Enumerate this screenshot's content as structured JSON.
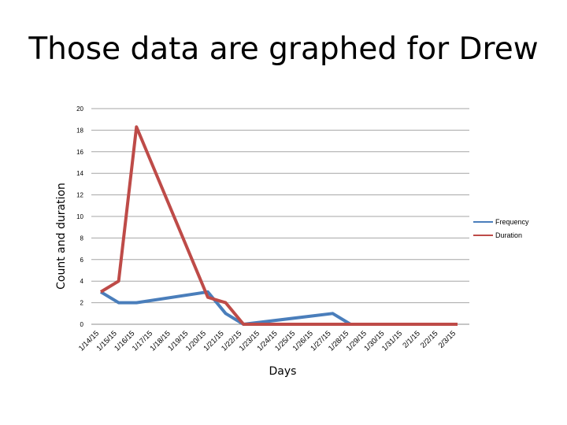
{
  "slide": {
    "title": "Those data are graphed for Drew"
  },
  "chart_data": {
    "type": "line",
    "title": "",
    "xlabel": "Days",
    "ylabel": "Count and duration",
    "ylim": [
      0,
      20
    ],
    "yticks": [
      0,
      2,
      4,
      6,
      8,
      10,
      12,
      14,
      16,
      18,
      20
    ],
    "grid": true,
    "legend": "right",
    "categories": [
      "1/14/15",
      "1/15/15",
      "1/16/15",
      "1/17/15",
      "1/18/15",
      "1/19/15",
      "1/20/15",
      "1/21/15",
      "1/22/15",
      "1/23/15",
      "1/24/15",
      "1/25/15",
      "1/26/15",
      "1/27/15",
      "1/28/15",
      "1/29/15",
      "1/30/15",
      "1/31/15",
      "2/1/15",
      "2/2/15",
      "2/3/15"
    ],
    "series": [
      {
        "name": "Frequency",
        "color": "#4a7ebb",
        "values": [
          3,
          2,
          2,
          null,
          null,
          null,
          3,
          1,
          0,
          null,
          null,
          null,
          null,
          1,
          0,
          0,
          0,
          0,
          0,
          0,
          0
        ]
      },
      {
        "name": "Duration",
        "color": "#be4b48",
        "values": [
          3,
          4,
          18.3,
          null,
          null,
          null,
          2.5,
          2,
          0,
          0,
          0,
          0,
          0,
          0,
          0,
          0,
          0,
          0,
          0,
          0,
          0
        ]
      }
    ]
  }
}
